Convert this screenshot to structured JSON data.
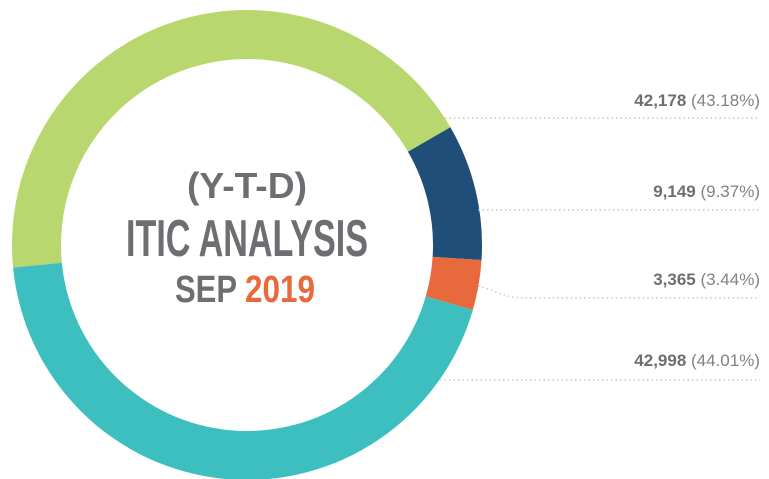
{
  "chart_data": {
    "type": "donut",
    "title_lines": [
      "(Y-T-D)",
      "ITIC ANALYSIS",
      "SEP"
    ],
    "title_year": "2019",
    "values": [
      42178,
      9149,
      3365,
      42998
    ],
    "value_labels": [
      "42,178",
      "9,149",
      "3,365",
      "42,998"
    ],
    "percent_labels": [
      "(43.18%)",
      "(9.37%)",
      "(3.44%)",
      "(44.01%)"
    ],
    "colors": [
      "#b8d86f",
      "#1f4e79",
      "#e8693c",
      "#3dbfbf"
    ],
    "year_color": "#e8693c"
  }
}
